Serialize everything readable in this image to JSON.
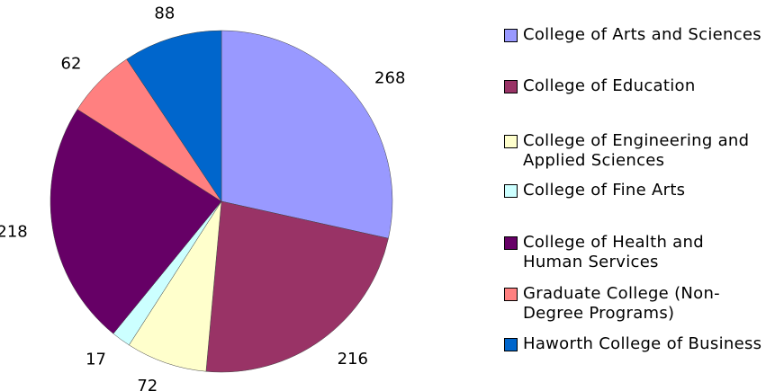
{
  "chart_data": {
    "type": "pie",
    "categories": [
      "College of Arts and Sciences",
      "College of Education",
      "College of Engineering and Applied Sciences",
      "College of Fine Arts",
      "College of Health and Human Services",
      "Graduate College (Non-Degree Programs)",
      "Haworth College of Business"
    ],
    "values": [
      268,
      216,
      72,
      17,
      218,
      62,
      88
    ],
    "colors": [
      "#9999ff",
      "#993366",
      "#ffffcc",
      "#ccffff",
      "#660066",
      "#ff8080",
      "#0066cc"
    ],
    "legend": "right"
  }
}
